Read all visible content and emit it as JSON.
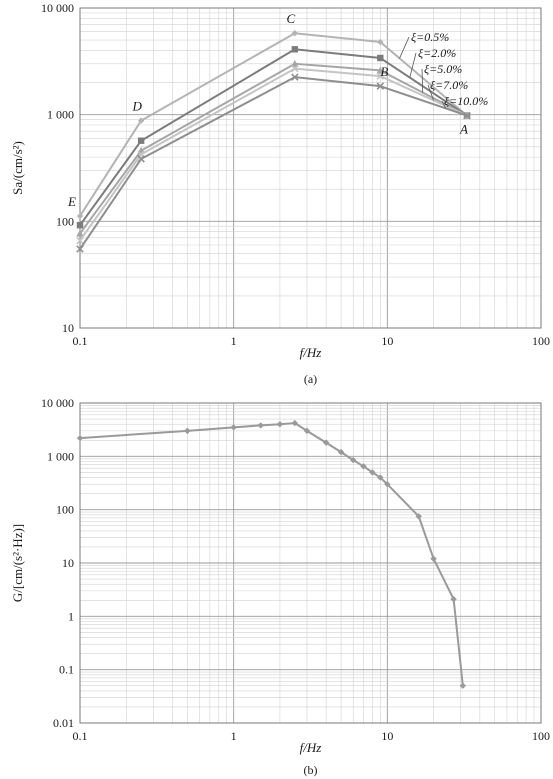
{
  "chart_data": [
    {
      "type": "line",
      "panel_caption": "(a)",
      "xlabel": "f/Hz",
      "ylabel": "Sa/(cm/s²)",
      "xscale": "log",
      "yscale": "log",
      "xlim": [
        0.1,
        100
      ],
      "ylim": [
        10,
        10000
      ],
      "grid": true,
      "x_ticks": [
        "0.1",
        "1",
        "10",
        "100"
      ],
      "y_ticks": [
        "10",
        "100",
        "1 000",
        "10 000"
      ],
      "x": [
        0.1,
        0.25,
        2.5,
        9,
        33
      ],
      "series": [
        {
          "name": "ξ=0.5%",
          "values": [
            112,
            880,
            5800,
            4800,
            980
          ],
          "color": "#b4b4b4",
          "marker": "diamond"
        },
        {
          "name": "ξ=2.0%",
          "values": [
            92,
            570,
            4100,
            3400,
            980
          ],
          "color": "#7c7c7c",
          "marker": "square"
        },
        {
          "name": "ξ=5.0%",
          "values": [
            77,
            460,
            3000,
            2600,
            980
          ],
          "color": "#a6a6a6",
          "marker": "triangle"
        },
        {
          "name": "ξ=7.0%",
          "values": [
            66,
            425,
            2700,
            2300,
            980
          ],
          "color": "#c4c4c4",
          "marker": "x"
        },
        {
          "name": "ξ=10.0%",
          "values": [
            55,
            385,
            2250,
            1850,
            980
          ],
          "color": "#8e8e8e",
          "marker": "x"
        }
      ],
      "annotations": [
        {
          "text": "A",
          "x": 33,
          "y": 980
        },
        {
          "text": "B",
          "x": 9,
          "y": 1850
        },
        {
          "text": "C",
          "x": 2.5,
          "y": 5800
        },
        {
          "text": "D",
          "x": 0.25,
          "y": 880
        },
        {
          "text": "E",
          "x": 0.1,
          "y": 112
        }
      ]
    },
    {
      "type": "line",
      "panel_caption": "(b)",
      "xlabel": "f/Hz",
      "ylabel": "G/[cm/(s²·Hz)]",
      "xscale": "log",
      "yscale": "log",
      "xlim": [
        0.1,
        100
      ],
      "ylim": [
        0.01,
        10000
      ],
      "grid": true,
      "x_ticks": [
        "0.1",
        "1",
        "10",
        "100"
      ],
      "y_ticks": [
        "0.01",
        "0.1",
        "1",
        "10",
        "100",
        "1 000",
        "10 000"
      ],
      "series": [
        {
          "x": [
            0.1,
            0.5,
            1,
            1.5,
            2,
            2.5,
            3,
            4,
            5,
            6,
            7,
            8,
            9,
            10,
            16,
            20,
            27,
            31
          ],
          "values": [
            2200,
            3000,
            3500,
            3800,
            4000,
            4200,
            3000,
            1800,
            1200,
            850,
            650,
            500,
            400,
            300,
            75,
            12,
            2.1,
            0.05
          ],
          "color": "#9a9a9a",
          "marker": "diamond"
        }
      ]
    }
  ]
}
